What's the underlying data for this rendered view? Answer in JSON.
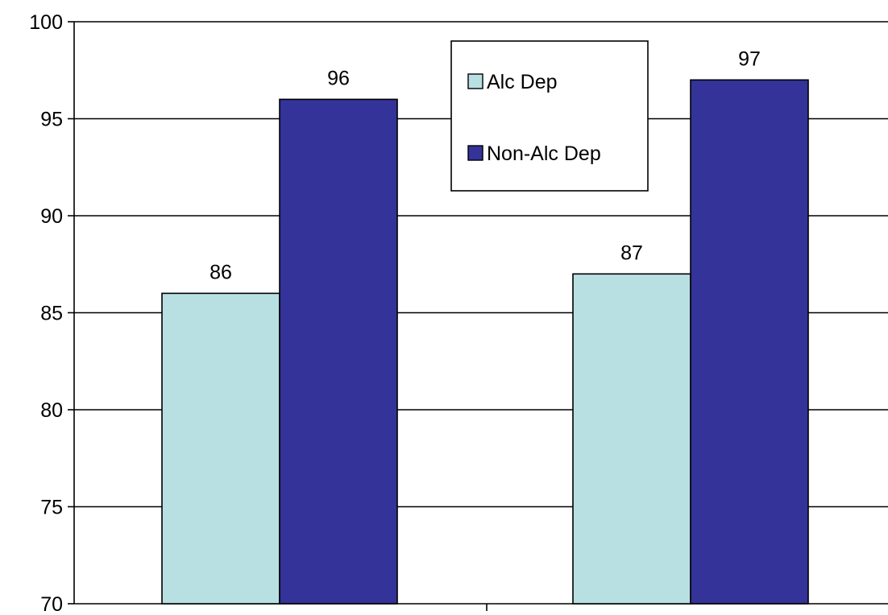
{
  "chart_data": {
    "type": "bar",
    "categories": [
      "",
      ""
    ],
    "series": [
      {
        "name": "Alc Dep",
        "values": [
          86,
          87
        ],
        "color": "#b8e0e2"
      },
      {
        "name": "Non-Alc Dep",
        "values": [
          96,
          97
        ],
        "color": "#333399"
      }
    ],
    "title": "",
    "xlabel": "",
    "ylabel": "",
    "ylim": [
      70,
      100
    ],
    "yticks": [
      70,
      75,
      80,
      85,
      90,
      95,
      100
    ],
    "grid": true,
    "legend_position": "top-center",
    "data_labels": true,
    "bar_edge_color": "#000000"
  }
}
